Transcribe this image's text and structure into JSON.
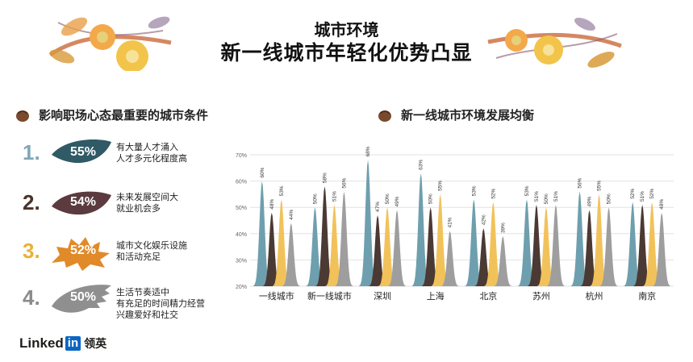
{
  "header": {
    "title": "城市环境",
    "subtitle": "新一线城市年轻化优势凸显"
  },
  "left_section": {
    "heading": "影响职场心态最重要的城市条件",
    "items": [
      {
        "rank": "1.",
        "percent": "55%",
        "text": "有大量人才涌入\n人才多元化程度高",
        "rank_color": "#7fa7b8",
        "leaf_color": "#2f5a66"
      },
      {
        "rank": "2.",
        "percent": "54%",
        "text": "未来发展空间大\n就业机会多",
        "rank_color": "#4a332a",
        "leaf_color": "#5b3b3f"
      },
      {
        "rank": "3.",
        "percent": "52%",
        "text": "城市文化娱乐设施\n和活动充足",
        "rank_color": "#e9b13a",
        "leaf_color": "#e08a2a"
      },
      {
        "rank": "4.",
        "percent": "50%",
        "text": "生活节奏适中\n有充足的时间精力经营\n兴趣爱好和社交",
        "rank_color": "#8a8a8a",
        "leaf_color": "#8f8f8f"
      }
    ]
  },
  "right_section": {
    "heading": "新一线城市环境发展均衡"
  },
  "chart_data": {
    "type": "area",
    "categories": [
      "一线城市",
      "新一线城市",
      "深圳",
      "上海",
      "北京",
      "苏州",
      "杭州",
      "南京"
    ],
    "series": [
      {
        "values": [
          60,
          50,
          68,
          63,
          53,
          53,
          56,
          52
        ],
        "color": "#6e9fae"
      },
      {
        "values": [
          48,
          58,
          47,
          50,
          42,
          51,
          49,
          51
        ],
        "color": "#4b3934"
      },
      {
        "values": [
          53,
          51,
          50,
          55,
          52,
          50,
          55,
          52
        ],
        "color": "#f2c25a"
      },
      {
        "values": [
          44,
          56,
          49,
          41,
          39,
          51,
          50,
          48
        ],
        "color": "#9e9e9e"
      }
    ],
    "ylim": [
      20,
      70
    ],
    "yticks": [
      "20%",
      "30%",
      "40%",
      "50%",
      "60%",
      "70%"
    ],
    "grid": true
  },
  "logo": {
    "word": "Linked",
    "box": "in",
    "cn": "领英"
  }
}
